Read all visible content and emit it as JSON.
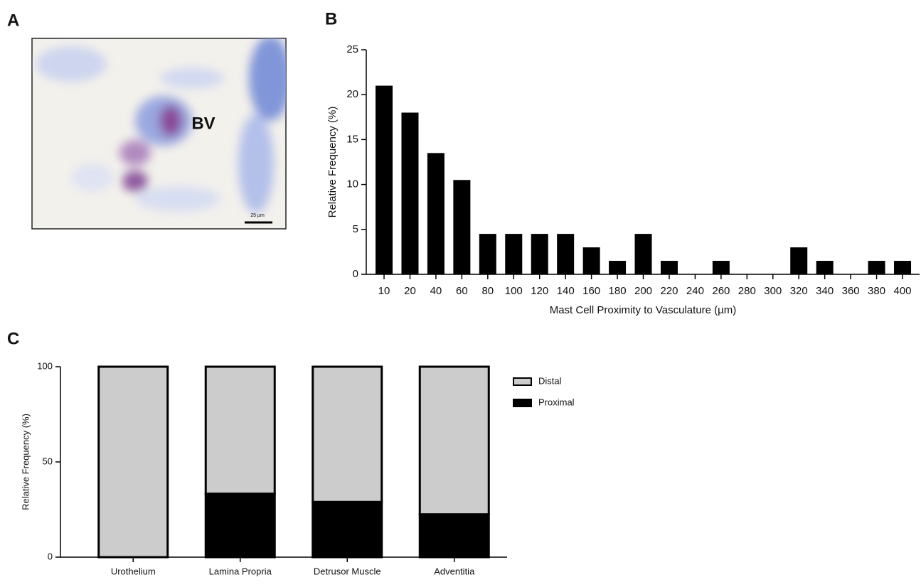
{
  "panel_labels": [
    "A",
    "B",
    "C"
  ],
  "image": {
    "labels": [
      "BV"
    ],
    "scale_bar": "25 µm"
  },
  "chart_data": [
    {
      "type": "bar",
      "xlabel": "Mast Cell Proximity to Vasculature (µm)",
      "ylabel": "Relative Frequency (%)",
      "categories": [
        "10",
        "20",
        "40",
        "60",
        "80",
        "100",
        "120",
        "140",
        "160",
        "180",
        "200",
        "220",
        "240",
        "260",
        "280",
        "300",
        "320",
        "340",
        "360",
        "380",
        "400"
      ],
      "values": [
        21,
        18,
        13.5,
        10.5,
        4.5,
        4.5,
        4.5,
        4.5,
        3,
        1.5,
        4.5,
        1.5,
        0,
        1.5,
        0,
        0,
        3,
        1.5,
        0,
        1.5,
        1.5
      ],
      "color": "#000000",
      "ylim": [
        0,
        25
      ],
      "yticks": [
        0,
        5,
        10,
        15,
        20,
        25
      ],
      "grid": false
    },
    {
      "type": "stacked_bar",
      "ylabel": "Relative Frequency (%)",
      "categories": [
        "Urothelium",
        "Lamina Propria",
        "Detrusor Muscle",
        "Adventitia"
      ],
      "series": [
        {
          "name": "Proximal",
          "color": "#000000",
          "values": [
            0,
            33.3,
            29,
            22.5
          ]
        },
        {
          "name": "Distal",
          "color": "#cccccc",
          "values": [
            100,
            66.7,
            71,
            77.5
          ]
        }
      ],
      "edge_color": "#000000",
      "ylim": [
        0,
        100
      ],
      "yticks": [
        0,
        50,
        100
      ],
      "grid": false,
      "legend": "right"
    }
  ]
}
